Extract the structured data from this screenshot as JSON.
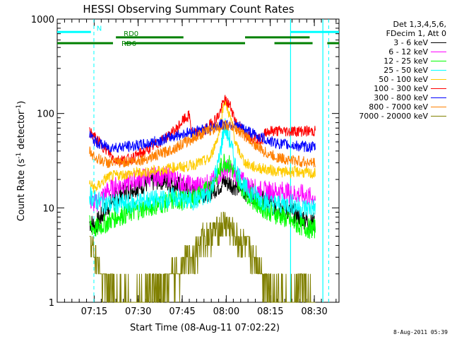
{
  "chart_data": {
    "type": "line",
    "title": "HESSI Observing Summary Count Rates",
    "xlabel": "Start Time (08-Aug-11 07:02:22)",
    "ylabel_prefix": "Count Rate (s",
    "ylabel_sup": "-1",
    "ylabel_mid": " detector",
    "ylabel_suffix": ")",
    "yscale": "log",
    "ylim": [
      1,
      1000
    ],
    "xlim_minutes": [
      0,
      96
    ],
    "x_ticks": [
      {
        "label": "07:15",
        "min": 12.6
      },
      {
        "label": "07:30",
        "min": 27.6
      },
      {
        "label": "07:45",
        "min": 42.6
      },
      {
        "label": "08:00",
        "min": 57.6
      },
      {
        "label": "08:15",
        "min": 72.6
      },
      {
        "label": "08:30",
        "min": 87.6
      }
    ],
    "y_ticks": [
      {
        "label": "1",
        "value": 1
      },
      {
        "label": "10",
        "value": 10
      },
      {
        "label": "100",
        "value": 100
      },
      {
        "label": "1000",
        "value": 1000
      }
    ],
    "legend_header": [
      "Det 1,3,4,5,6,",
      "FDecim 1, Att 0"
    ],
    "series": [
      {
        "name": "3 - 6 keV",
        "color": "#000000",
        "x": [
          11,
          13,
          17,
          20,
          25,
          30,
          35,
          40,
          43,
          47,
          52,
          55,
          57,
          59,
          61,
          64,
          67,
          70,
          73,
          77,
          80,
          83,
          86,
          88
        ],
        "y": [
          7,
          6.5,
          10,
          13,
          16,
          18,
          20,
          18,
          16,
          14,
          15,
          17,
          19,
          18,
          17,
          15,
          14,
          12,
          11,
          10,
          9,
          8,
          7,
          7
        ]
      },
      {
        "name": "6 - 12 keV",
        "color": "#ff00ff",
        "x": [
          11,
          13,
          17,
          20,
          25,
          30,
          35,
          40,
          43,
          47,
          52,
          55,
          57,
          59,
          61,
          64,
          67,
          70,
          73,
          77,
          80,
          83,
          86,
          88
        ],
        "y": [
          12,
          11,
          15,
          17,
          19,
          21,
          22,
          21,
          18,
          17,
          18,
          22,
          26,
          25,
          22,
          18,
          16,
          15,
          15,
          15,
          14,
          14,
          13,
          13
        ]
      },
      {
        "name": "12 - 25 keV",
        "color": "#00ff00",
        "x": [
          11,
          13,
          17,
          20,
          25,
          30,
          35,
          40,
          43,
          47,
          52,
          55,
          57,
          59,
          61,
          64,
          67,
          70,
          73,
          77,
          80,
          83,
          86,
          88
        ],
        "y": [
          6.5,
          6,
          7,
          8,
          9,
          10,
          11,
          12,
          12,
          13,
          16,
          24,
          32,
          28,
          21,
          15,
          12,
          10,
          9,
          8,
          7,
          6.5,
          6,
          6
        ]
      },
      {
        "name": "25 - 50 keV",
        "color": "#00ffff",
        "x": [
          11,
          13,
          17,
          20,
          25,
          30,
          35,
          40,
          43,
          47,
          52,
          55,
          57,
          59,
          61,
          64,
          67,
          70,
          73,
          77,
          80,
          83,
          86,
          88
        ],
        "y": [
          14,
          12,
          11,
          11,
          11,
          12,
          12,
          13,
          12,
          12,
          14,
          30,
          75,
          50,
          25,
          16,
          14,
          12,
          11,
          11,
          11,
          10,
          10,
          10
        ]
      },
      {
        "name": "50 - 100 keV",
        "color": "#ffcc00",
        "x": [
          11,
          13,
          17,
          20,
          25,
          30,
          35,
          40,
          43,
          47,
          52,
          55,
          57,
          59,
          61,
          64,
          67,
          70,
          73,
          77,
          80,
          83,
          86,
          88
        ],
        "y": [
          18,
          16,
          21,
          22,
          23,
          24,
          25,
          27,
          27,
          29,
          33,
          60,
          140,
          90,
          45,
          30,
          27,
          26,
          25,
          24,
          24,
          24,
          23,
          23
        ]
      },
      {
        "name": "100 - 300 keV",
        "color": "#ff0000",
        "x": [
          11,
          13,
          17,
          20,
          25,
          30,
          35,
          40,
          43,
          45,
          46,
          50,
          55,
          57,
          59,
          61,
          64,
          67,
          70,
          71,
          75,
          80,
          86,
          88
        ],
        "y": [
          65,
          55,
          40,
          32,
          33,
          40,
          50,
          65,
          85,
          95,
          60,
          65,
          95,
          140,
          120,
          80,
          62,
          55,
          52,
          65,
          65,
          65,
          65,
          65
        ],
        "segment_breaks": [
          16,
          46,
          71
        ]
      },
      {
        "name": "300 - 800 keV",
        "color": "#0000ff",
        "x": [
          11,
          13,
          17,
          20,
          25,
          30,
          35,
          40,
          45,
          50,
          55,
          57,
          59,
          61,
          64,
          67,
          70,
          73,
          77,
          80,
          83,
          86,
          88
        ],
        "y": [
          60,
          50,
          44,
          44,
          45,
          47,
          52,
          58,
          63,
          68,
          75,
          77,
          77,
          74,
          68,
          60,
          55,
          50,
          47,
          46,
          45,
          44,
          44
        ]
      },
      {
        "name": "800 - 7000 keV",
        "color": "#ff8000",
        "x": [
          11,
          13,
          17,
          20,
          25,
          30,
          35,
          40,
          45,
          50,
          55,
          57,
          59,
          61,
          64,
          67,
          70,
          73,
          77,
          80,
          83,
          86,
          88
        ],
        "y": [
          40,
          34,
          30,
          30,
          31,
          33,
          37,
          43,
          52,
          63,
          72,
          75,
          74,
          68,
          58,
          48,
          40,
          36,
          33,
          32,
          31,
          30,
          30
        ]
      },
      {
        "name": "7000 - 20000 keV",
        "color": "#808000",
        "x": [
          11,
          13,
          15,
          17,
          20,
          25,
          30,
          35,
          40,
          45,
          48,
          50,
          55,
          57,
          59,
          61,
          64,
          67,
          70,
          73,
          77,
          80,
          83,
          86,
          88
        ],
        "y": [
          5,
          3,
          2,
          1.5,
          1.3,
          1.1,
          1.2,
          1.5,
          2,
          3,
          4,
          5,
          6,
          7,
          6,
          5,
          4,
          3,
          2,
          1.5,
          1.2,
          1.1,
          1.5,
          1.2,
          1
        ]
      }
    ],
    "mode_bars": [
      {
        "name": "N",
        "color": "#00ffff",
        "segments": [
          [
            0,
            11.5
          ],
          [
            79.5,
            96
          ]
        ],
        "level": 730
      },
      {
        "name": "RD0",
        "color": "#008000",
        "segments": [
          [
            20,
            43
          ],
          [
            64,
            86
          ]
        ],
        "level": 640
      },
      {
        "name": "RD6",
        "color": "#008000",
        "segments": [
          [
            0,
            19
          ],
          [
            23,
            64
          ],
          [
            74,
            87
          ],
          [
            92,
            96
          ]
        ],
        "level": 555
      }
    ],
    "mode_lines": {
      "solid_min": [
        79.5,
        90.5
      ],
      "dashed_min": [
        12.5,
        92.5
      ],
      "color": "#00ffff"
    },
    "grid": false,
    "legend_position": "right"
  },
  "timestamp": "8-Aug-2011 05:39"
}
